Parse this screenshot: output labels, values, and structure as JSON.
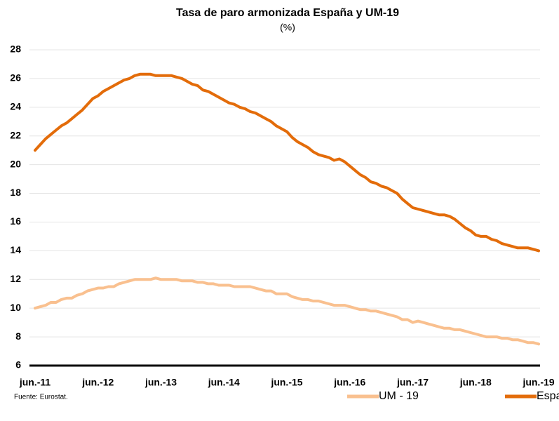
{
  "chart_data": {
    "type": "line",
    "title": "Tasa de paro armonizada España y UM-19",
    "subtitle": "(%)",
    "source": "Fuente: Eurostat.",
    "categories": [
      "jun.-11",
      null,
      null,
      null,
      null,
      null,
      null,
      null,
      null,
      null,
      null,
      null,
      "jun.-12",
      null,
      null,
      null,
      null,
      null,
      null,
      null,
      null,
      null,
      null,
      null,
      "jun.-13",
      null,
      null,
      null,
      null,
      null,
      null,
      null,
      null,
      null,
      null,
      null,
      "jun.-14",
      null,
      null,
      null,
      null,
      null,
      null,
      null,
      null,
      null,
      null,
      null,
      "jun.-15",
      null,
      null,
      null,
      null,
      null,
      null,
      null,
      null,
      null,
      null,
      null,
      "jun.-16",
      null,
      null,
      null,
      null,
      null,
      null,
      null,
      null,
      null,
      null,
      null,
      "jun.-17",
      null,
      null,
      null,
      null,
      null,
      null,
      null,
      null,
      null,
      null,
      null,
      "jun.-18",
      null,
      null,
      null,
      null,
      null,
      null,
      null,
      null,
      null,
      null,
      null,
      "jun.-19"
    ],
    "series": [
      {
        "name": "UM - 19",
        "color": "#f9c08f",
        "values": [
          10.0,
          10.1,
          10.2,
          10.4,
          10.4,
          10.6,
          10.7,
          10.7,
          10.9,
          11.0,
          11.2,
          11.3,
          11.4,
          11.4,
          11.5,
          11.5,
          11.7,
          11.8,
          11.9,
          12.0,
          12.0,
          12.0,
          12.0,
          12.1,
          12.0,
          12.0,
          12.0,
          12.0,
          11.9,
          11.9,
          11.9,
          11.8,
          11.8,
          11.7,
          11.7,
          11.6,
          11.6,
          11.6,
          11.5,
          11.5,
          11.5,
          11.5,
          11.4,
          11.3,
          11.2,
          11.2,
          11.0,
          11.0,
          11.0,
          10.8,
          10.7,
          10.6,
          10.6,
          10.5,
          10.5,
          10.4,
          10.3,
          10.2,
          10.2,
          10.2,
          10.1,
          10.0,
          9.9,
          9.9,
          9.8,
          9.8,
          9.7,
          9.6,
          9.5,
          9.4,
          9.2,
          9.2,
          9.0,
          9.1,
          9.0,
          8.9,
          8.8,
          8.7,
          8.6,
          8.6,
          8.5,
          8.5,
          8.4,
          8.3,
          8.2,
          8.1,
          8.0,
          8.0,
          8.0,
          7.9,
          7.9,
          7.8,
          7.8,
          7.7,
          7.6,
          7.6,
          7.5
        ]
      },
      {
        "name": "España",
        "color": "#e36c0a",
        "values": [
          21.0,
          21.4,
          21.8,
          22.1,
          22.4,
          22.7,
          22.9,
          23.2,
          23.5,
          23.8,
          24.2,
          24.6,
          24.8,
          25.1,
          25.3,
          25.5,
          25.7,
          25.9,
          26.0,
          26.2,
          26.3,
          26.3,
          26.3,
          26.2,
          26.2,
          26.2,
          26.2,
          26.1,
          26.0,
          25.8,
          25.6,
          25.5,
          25.2,
          25.1,
          24.9,
          24.7,
          24.5,
          24.3,
          24.2,
          24.0,
          23.9,
          23.7,
          23.6,
          23.4,
          23.2,
          23.0,
          22.7,
          22.5,
          22.3,
          21.9,
          21.6,
          21.4,
          21.2,
          20.9,
          20.7,
          20.6,
          20.5,
          20.3,
          20.4,
          20.2,
          19.9,
          19.6,
          19.3,
          19.1,
          18.8,
          18.7,
          18.5,
          18.4,
          18.2,
          18.0,
          17.6,
          17.3,
          17.0,
          16.9,
          16.8,
          16.7,
          16.6,
          16.5,
          16.5,
          16.4,
          16.2,
          15.9,
          15.6,
          15.4,
          15.1,
          15.0,
          15.0,
          14.8,
          14.7,
          14.5,
          14.4,
          14.3,
          14.2,
          14.2,
          14.2,
          14.1,
          14.0
        ]
      }
    ],
    "ylim": [
      6,
      28
    ],
    "yticks": [
      6,
      8,
      10,
      12,
      14,
      16,
      18,
      20,
      22,
      24,
      26,
      28
    ],
    "grid": true,
    "legend": "bottom-right"
  }
}
